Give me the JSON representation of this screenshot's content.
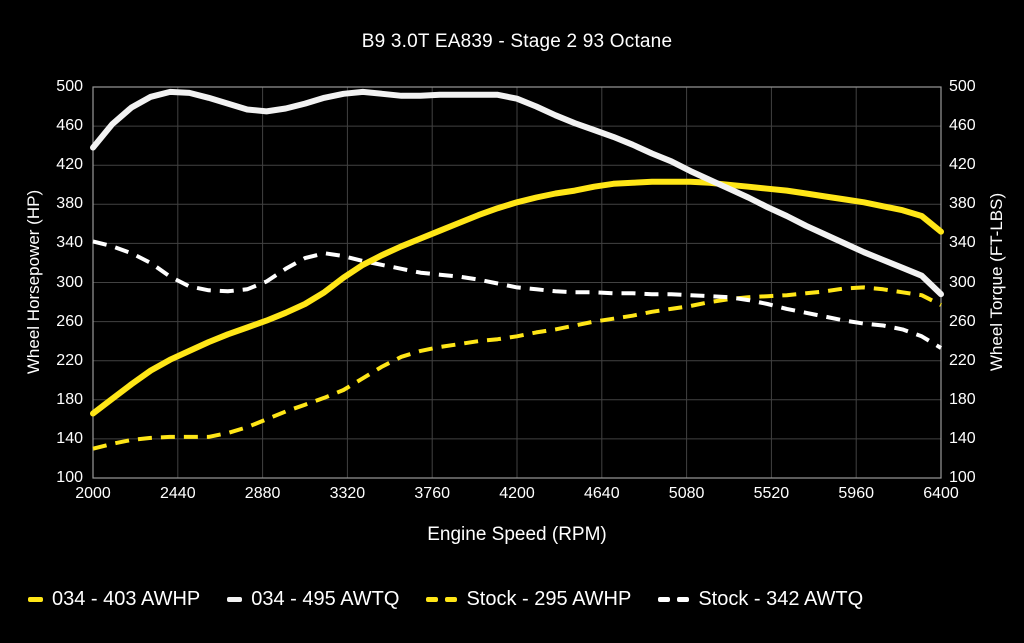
{
  "chart_data": {
    "type": "line",
    "title": "B9 3.0T EA839 - Stage 2 93 Octane",
    "xlabel": "Engine Speed (RPM)",
    "ylabel_left": "Wheel Horsepower (HP)",
    "ylabel_right": "Wheel Torque (FT-LBS)",
    "xlim": [
      2000,
      6400
    ],
    "ylim": [
      100,
      500
    ],
    "x_ticks": [
      2000,
      2440,
      2880,
      3320,
      3760,
      4200,
      4640,
      5080,
      5520,
      5960,
      6400
    ],
    "y_ticks": [
      100,
      140,
      180,
      220,
      260,
      300,
      340,
      380,
      420,
      460,
      500
    ],
    "grid": true,
    "legend_position": "bottom",
    "colors": {
      "background": "#000000",
      "text": "#ffffff",
      "gridline": "#424242",
      "plot_border": "#999999",
      "accent_yellow": "#ffe617",
      "accent_white": "#f2f2f2"
    },
    "x": [
      2000,
      2100,
      2200,
      2300,
      2400,
      2500,
      2600,
      2700,
      2800,
      2900,
      3000,
      3100,
      3200,
      3300,
      3400,
      3500,
      3600,
      3700,
      3800,
      3900,
      4000,
      4100,
      4200,
      4300,
      4400,
      4500,
      4600,
      4700,
      4800,
      4900,
      5000,
      5100,
      5200,
      5300,
      5400,
      5500,
      5600,
      5700,
      5800,
      5900,
      6000,
      6100,
      6200,
      6300,
      6400
    ],
    "series": [
      {
        "name": "034 - 403 AWHP",
        "color": "#ffe617",
        "style": "solid",
        "peak": 403,
        "values": [
          166,
          181,
          196,
          210,
          221,
          230,
          239,
          247,
          254,
          261,
          269,
          278,
          290,
          305,
          318,
          328,
          337,
          345,
          353,
          361,
          369,
          376,
          382,
          387,
          391,
          394,
          398,
          401,
          402,
          403,
          403,
          403,
          402,
          400,
          398,
          396,
          394,
          391,
          388,
          385,
          382,
          378,
          374,
          368,
          352
        ]
      },
      {
        "name": "034 - 495 AWTQ",
        "color": "#f2f2f2",
        "style": "solid",
        "peak": 495,
        "values": [
          438,
          462,
          479,
          490,
          495,
          494,
          489,
          483,
          477,
          475,
          478,
          483,
          489,
          493,
          495,
          493,
          491,
          491,
          492,
          492,
          492,
          492,
          488,
          480,
          471,
          463,
          456,
          449,
          441,
          432,
          424,
          414,
          405,
          396,
          387,
          377,
          368,
          358,
          349,
          340,
          331,
          323,
          315,
          307,
          288
        ]
      },
      {
        "name": "Stock - 295 AWHP",
        "color": "#ffe617",
        "style": "dashed",
        "peak": 295,
        "values": [
          130,
          135,
          139,
          141,
          142,
          142,
          142,
          146,
          152,
          160,
          168,
          175,
          182,
          190,
          202,
          214,
          224,
          230,
          234,
          237,
          240,
          242,
          245,
          249,
          252,
          256,
          260,
          263,
          266,
          270,
          273,
          276,
          280,
          283,
          285,
          286,
          287,
          289,
          291,
          294,
          295,
          293,
          290,
          287,
          277
        ]
      },
      {
        "name": "Stock - 342 AWTQ",
        "color": "#ffffff",
        "style": "dashed",
        "peak": 342,
        "values": [
          342,
          337,
          330,
          320,
          306,
          296,
          292,
          291,
          293,
          301,
          314,
          325,
          330,
          327,
          322,
          318,
          314,
          310,
          308,
          306,
          303,
          299,
          295,
          293,
          291,
          290,
          290,
          289,
          289,
          288,
          288,
          287,
          286,
          285,
          282,
          278,
          273,
          269,
          265,
          261,
          258,
          256,
          252,
          245,
          233
        ]
      }
    ]
  }
}
